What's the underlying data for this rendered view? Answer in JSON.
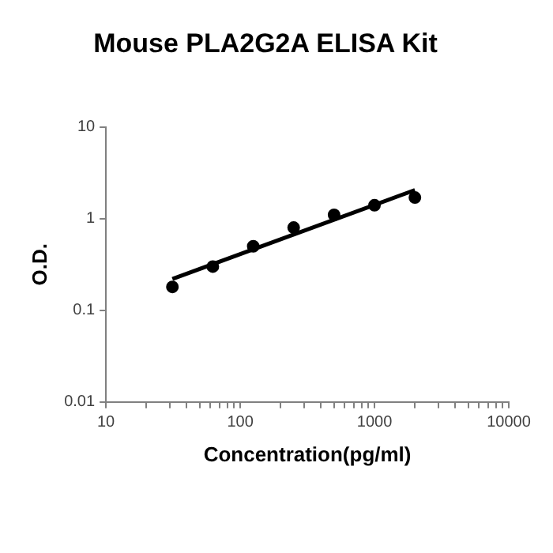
{
  "chart_data": {
    "type": "scatter",
    "title": "Mouse PLA2G2A ELISA Kit",
    "xlabel": "Concentration(pg/ml)",
    "ylabel": "O.D.",
    "log": "xy",
    "grid": false,
    "legend": false,
    "xlim": [
      10,
      10000
    ],
    "ylim": [
      0.01,
      10
    ],
    "xticks": [
      10,
      {
        "value": 20,
        "label": null
      },
      {
        "value": 30,
        "label": null
      },
      {
        "value": 40,
        "label": null
      },
      {
        "value": 50,
        "label": null
      },
      {
        "value": 60,
        "label": null
      },
      {
        "value": 70,
        "label": null
      },
      {
        "value": 80,
        "label": null
      },
      {
        "value": 90,
        "label": null
      },
      100,
      {
        "value": 200,
        "label": null
      },
      {
        "value": 300,
        "label": null
      },
      {
        "value": 400,
        "label": null
      },
      {
        "value": 500,
        "label": null
      },
      {
        "value": 600,
        "label": null
      },
      {
        "value": 700,
        "label": null
      },
      {
        "value": 800,
        "label": null
      },
      {
        "value": 900,
        "label": null
      },
      1000,
      {
        "value": 2000,
        "label": null
      },
      {
        "value": 3000,
        "label": null
      },
      {
        "value": 4000,
        "label": null
      },
      {
        "value": 5000,
        "label": null
      },
      {
        "value": 6000,
        "label": null
      },
      {
        "value": 7000,
        "label": null
      },
      {
        "value": 8000,
        "label": null
      },
      {
        "value": 9000,
        "label": null
      },
      10000
    ],
    "yticks": [
      0.01,
      0.1,
      1,
      10
    ],
    "series": [
      {
        "color": "#000000",
        "marker": "circle",
        "x": [
          31.25,
          62.5,
          125,
          250,
          500,
          1000,
          2000
        ],
        "values": [
          0.18,
          0.3,
          0.5,
          0.8,
          1.1,
          1.4,
          1.7
        ]
      },
      {
        "type": "line",
        "color": "#000000",
        "marker": "none",
        "line_style": "solid",
        "x": [
          31.25,
          2000
        ],
        "values": [
          0.22,
          2.05
        ]
      }
    ]
  }
}
